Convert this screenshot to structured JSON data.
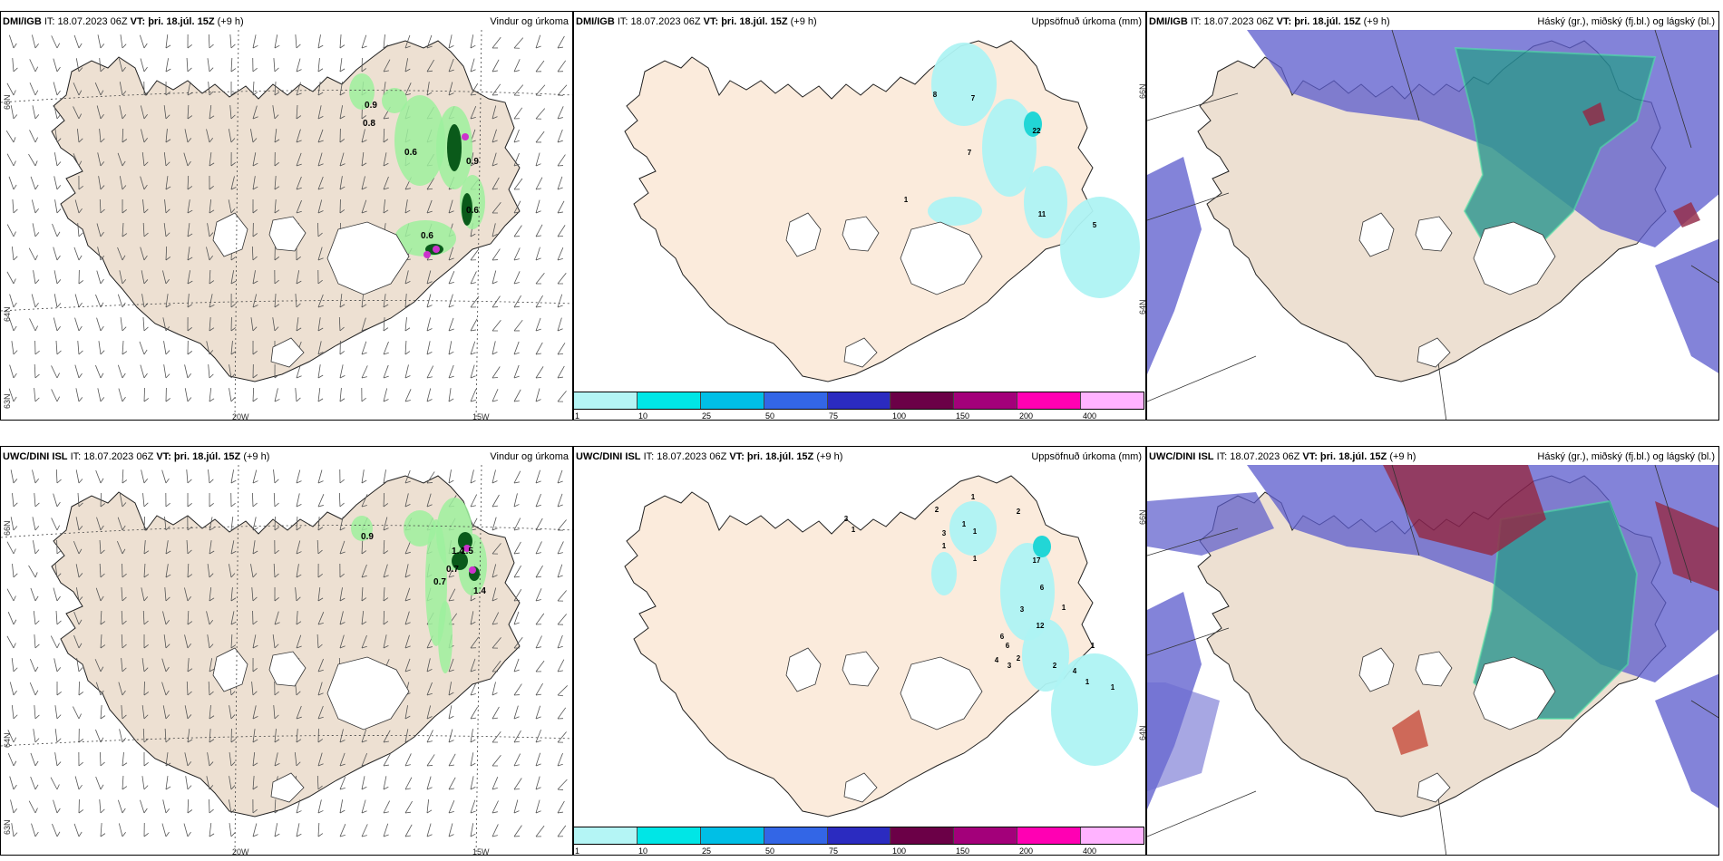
{
  "rows": [
    {
      "model": "DMI/IGB",
      "init": "IT: 18.07.2023 06Z",
      "valid": "VT: þri. 18.júl. 15Z",
      "lead": "(+9 h)",
      "titles": [
        "Vindur og úrkoma",
        "Uppsöfnuð úrkoma (mm)",
        "Háský (gr.), miðský (fj.bl.) og lágský (bl.)"
      ],
      "wind_precip_labels": [
        "0.9",
        "0.8",
        "0.6",
        "0.9",
        "0.6",
        "0.6"
      ],
      "accum_labels": [
        "8",
        "7",
        "22",
        "7",
        "1",
        "11",
        "5"
      ]
    },
    {
      "model": "UWC/DINI ISL",
      "init": "IT: 18.07.2023 06Z",
      "valid": "VT: þri. 18.júl. 15Z",
      "lead": "(+9 h)",
      "titles": [
        "Vindur og úrkoma",
        "Uppsöfnuð úrkoma (mm)",
        "Háský (gr.), miðský (fj.bl.) og lágský (bl.)"
      ],
      "wind_precip_labels": [
        "0.9",
        "1.4",
        "0.7",
        "1.5",
        "0.7",
        "1.4"
      ],
      "accum_labels": [
        "2",
        "1",
        "1",
        "2",
        "3",
        "1",
        "1",
        "1",
        "3",
        "1",
        "17",
        "6",
        "3",
        "1",
        "12",
        "6",
        "6",
        "2",
        "4",
        "3",
        "2",
        "4",
        "1",
        "1",
        "1"
      ]
    }
  ],
  "axis_labels": {
    "lat66": "66N",
    "lat64": "64N",
    "lat63": "63N",
    "lon20": "20W",
    "lon15": "15W"
  },
  "colorbar": {
    "ticks": [
      "1",
      "10",
      "25",
      "50",
      "75",
      "100",
      "150",
      "200",
      "400"
    ],
    "colors": [
      "#b4f5f5",
      "#00e6e6",
      "#00bfe6",
      "#3366e6",
      "#2b2bc0",
      "#6b0047",
      "#a3007a",
      "#ff00b3",
      "#ffb3ff"
    ]
  },
  "colors": {
    "land": "#ede0d2",
    "sea": "#ffffff",
    "precip_light": "#9ef09e",
    "precip_dark": "#0a5a1a",
    "accum": "#aef3f3",
    "low_cloud": "#5c5ccc",
    "mid_cloud": "#1f8f8a",
    "high_cloud": "#8a1a3a"
  }
}
